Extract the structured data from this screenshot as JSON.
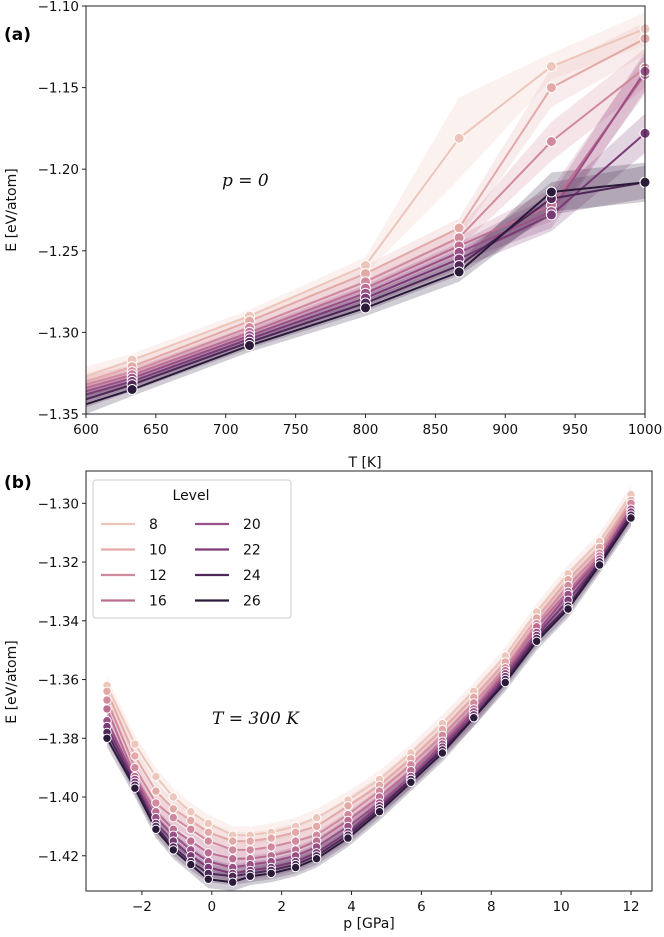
{
  "colors": {
    "8": "#ecc6bb",
    "10": "#e2a9a7",
    "12": "#d18a9d",
    "16": "#bc6e92",
    "20": "#9a4f86",
    "22": "#7a3a76",
    "24": "#4f2658",
    "26": "#2c1a3b"
  },
  "chart_data": [
    {
      "type": "line",
      "panel_label": "(a)",
      "annotation": "p = 0",
      "xlabel": "T [K]",
      "ylabel": "E [eV/atom]",
      "xlim": [
        600,
        1000
      ],
      "ylim": [
        -1.35,
        -1.1
      ],
      "xticks": [
        "600",
        "650",
        "700",
        "750",
        "800",
        "850",
        "900",
        "950",
        "1000"
      ],
      "yticks": [
        "−1.35",
        "−1.30",
        "−1.25",
        "−1.20",
        "−1.15",
        "−1.10"
      ],
      "x": [
        600,
        633,
        717,
        800,
        867,
        933,
        1000
      ],
      "series": [
        {
          "name": "8",
          "values": [
            -1.327,
            -1.317,
            -1.29,
            -1.259,
            -1.181,
            -1.137,
            -1.114
          ],
          "band": [
            0.006,
            0.004,
            0.004,
            0.005,
            0.025,
            0.008,
            0.01
          ]
        },
        {
          "name": "10",
          "values": [
            -1.33,
            -1.321,
            -1.293,
            -1.264,
            -1.236,
            -1.15,
            -1.12
          ],
          "band": [
            0.005,
            0.004,
            0.004,
            0.005,
            0.006,
            0.012,
            0.01
          ]
        },
        {
          "name": "12",
          "values": [
            -1.332,
            -1.324,
            -1.297,
            -1.269,
            -1.242,
            -1.183,
            -1.138
          ],
          "band": [
            0.005,
            0.004,
            0.004,
            0.005,
            0.006,
            0.012,
            0.012
          ]
        },
        {
          "name": "16",
          "values": [
            -1.334,
            -1.326,
            -1.3,
            -1.273,
            -1.247,
            -1.222,
            -1.142
          ],
          "band": [
            0.005,
            0.004,
            0.004,
            0.005,
            0.006,
            0.01,
            0.012
          ]
        },
        {
          "name": "20",
          "values": [
            -1.336,
            -1.328,
            -1.302,
            -1.276,
            -1.251,
            -1.226,
            -1.14
          ],
          "band": [
            0.005,
            0.004,
            0.004,
            0.005,
            0.006,
            0.01,
            0.012
          ]
        },
        {
          "name": "22",
          "values": [
            -1.338,
            -1.33,
            -1.304,
            -1.279,
            -1.255,
            -1.228,
            -1.178
          ],
          "band": [
            0.005,
            0.004,
            0.004,
            0.005,
            0.006,
            0.01,
            0.012
          ]
        },
        {
          "name": "24",
          "values": [
            -1.341,
            -1.332,
            -1.306,
            -1.282,
            -1.259,
            -1.218,
            -1.208
          ],
          "band": [
            0.005,
            0.004,
            0.004,
            0.005,
            0.006,
            0.01,
            0.01
          ]
        },
        {
          "name": "26",
          "values": [
            -1.344,
            -1.335,
            -1.308,
            -1.285,
            -1.263,
            -1.214,
            -1.208
          ],
          "band": [
            0.006,
            0.004,
            0.004,
            0.005,
            0.006,
            0.012,
            0.012
          ]
        }
      ]
    },
    {
      "type": "line",
      "panel_label": "(b)",
      "annotation": "T = 300 K",
      "xlabel": "p [GPa]",
      "ylabel": "E [eV/atom]",
      "xlim": [
        -3.6,
        12.6
      ],
      "ylim": [
        -1.432,
        -1.289
      ],
      "xticks": [
        "−2",
        "0",
        "2",
        "4",
        "6",
        "8",
        "10",
        "12"
      ],
      "xtick_values": [
        -2,
        0,
        2,
        4,
        6,
        8,
        10,
        12
      ],
      "yticks": [
        "−1.42",
        "−1.40",
        "−1.38",
        "−1.36",
        "−1.34",
        "−1.32",
        "−1.30"
      ],
      "ytick_values": [
        -1.42,
        -1.4,
        -1.38,
        -1.36,
        -1.34,
        -1.32,
        -1.3
      ],
      "legend_title": "Level",
      "legend_position": "upper-left",
      "x": [
        -3.0,
        -2.2,
        -1.6,
        -1.1,
        -0.6,
        -0.1,
        0.6,
        1.1,
        1.7,
        2.4,
        3.0,
        3.9,
        4.8,
        5.7,
        6.6,
        7.5,
        8.4,
        9.3,
        10.2,
        11.1,
        12.0
      ],
      "series": [
        {
          "name": "8",
          "values": [
            -1.362,
            -1.382,
            -1.393,
            -1.4,
            -1.405,
            -1.409,
            -1.413,
            -1.413,
            -1.412,
            -1.41,
            -1.407,
            -1.401,
            -1.394,
            -1.385,
            -1.375,
            -1.364,
            -1.352,
            -1.337,
            -1.324,
            -1.313,
            -1.297
          ]
        },
        {
          "name": "10",
          "values": [
            -1.364,
            -1.386,
            -1.398,
            -1.404,
            -1.408,
            -1.412,
            -1.415,
            -1.415,
            -1.414,
            -1.412,
            -1.41,
            -1.403,
            -1.396,
            -1.387,
            -1.377,
            -1.366,
            -1.354,
            -1.339,
            -1.326,
            -1.315,
            -1.299
          ]
        },
        {
          "name": "12",
          "values": [
            -1.367,
            -1.39,
            -1.402,
            -1.407,
            -1.411,
            -1.415,
            -1.418,
            -1.418,
            -1.417,
            -1.415,
            -1.413,
            -1.406,
            -1.398,
            -1.389,
            -1.379,
            -1.368,
            -1.356,
            -1.341,
            -1.328,
            -1.317,
            -1.3
          ]
        },
        {
          "name": "16",
          "values": [
            -1.37,
            -1.393,
            -1.405,
            -1.411,
            -1.415,
            -1.419,
            -1.421,
            -1.421,
            -1.42,
            -1.418,
            -1.415,
            -1.408,
            -1.4,
            -1.391,
            -1.381,
            -1.37,
            -1.357,
            -1.342,
            -1.33,
            -1.318,
            -1.302
          ]
        },
        {
          "name": "20",
          "values": [
            -1.374,
            -1.394,
            -1.407,
            -1.413,
            -1.418,
            -1.422,
            -1.424,
            -1.423,
            -1.422,
            -1.42,
            -1.417,
            -1.41,
            -1.402,
            -1.393,
            -1.382,
            -1.371,
            -1.358,
            -1.344,
            -1.331,
            -1.319,
            -1.302
          ]
        },
        {
          "name": "22",
          "values": [
            -1.376,
            -1.395,
            -1.409,
            -1.415,
            -1.42,
            -1.424,
            -1.426,
            -1.425,
            -1.424,
            -1.422,
            -1.419,
            -1.412,
            -1.403,
            -1.394,
            -1.383,
            -1.372,
            -1.359,
            -1.345,
            -1.333,
            -1.32,
            -1.303
          ]
        },
        {
          "name": "24",
          "values": [
            -1.378,
            -1.396,
            -1.41,
            -1.417,
            -1.422,
            -1.426,
            -1.427,
            -1.426,
            -1.425,
            -1.423,
            -1.42,
            -1.413,
            -1.404,
            -1.394,
            -1.384,
            -1.373,
            -1.36,
            -1.346,
            -1.335,
            -1.32,
            -1.304
          ]
        },
        {
          "name": "26",
          "values": [
            -1.38,
            -1.397,
            -1.411,
            -1.418,
            -1.423,
            -1.428,
            -1.429,
            -1.427,
            -1.426,
            -1.424,
            -1.421,
            -1.414,
            -1.405,
            -1.395,
            -1.385,
            -1.373,
            -1.361,
            -1.347,
            -1.336,
            -1.321,
            -1.305
          ]
        }
      ]
    }
  ]
}
